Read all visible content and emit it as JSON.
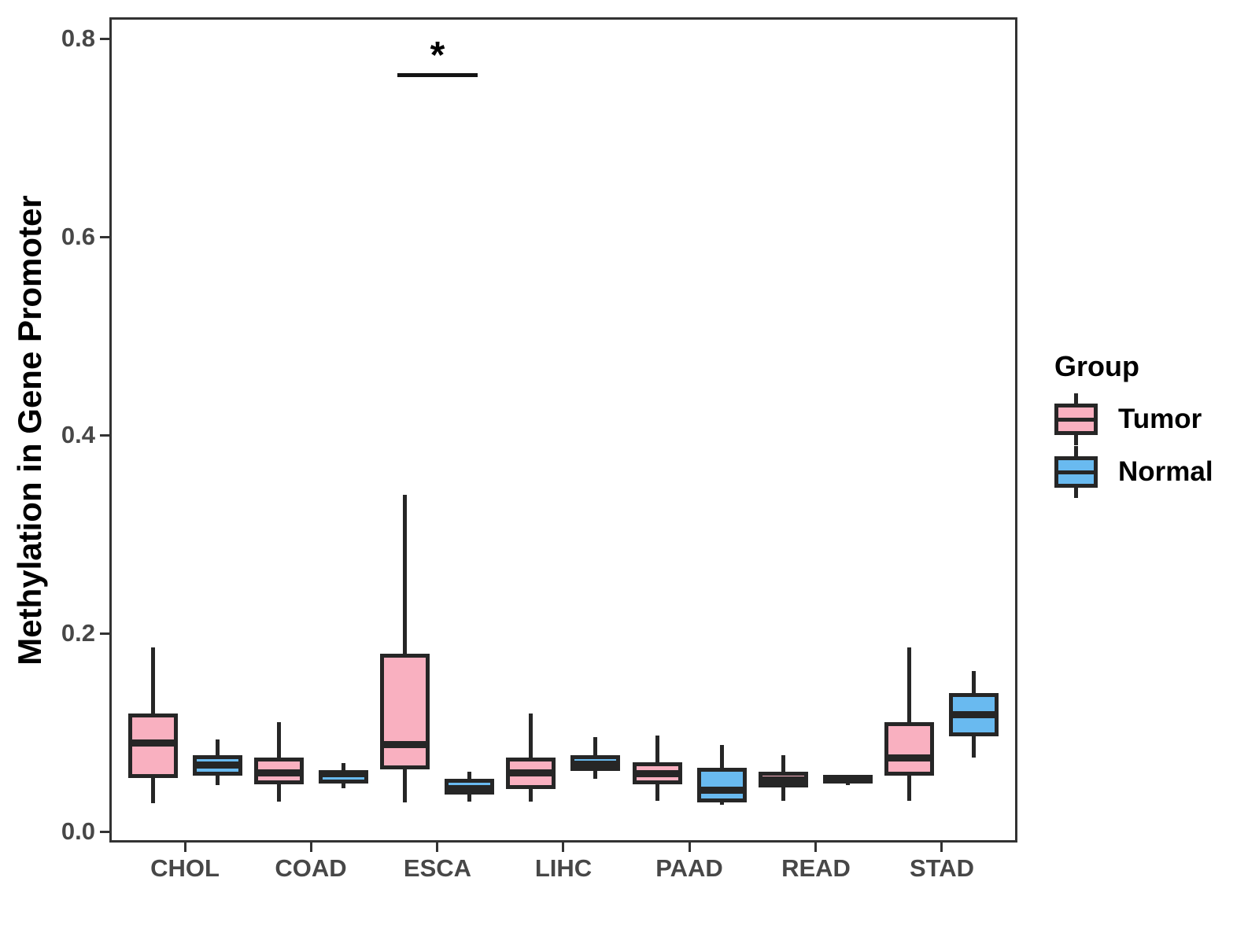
{
  "chart_data": {
    "type": "boxplot",
    "title": "",
    "xlabel": "",
    "ylabel": "Methylation in Gene Promoter",
    "ylim": [
      0.0,
      0.8
    ],
    "yticks": [
      0.0,
      0.2,
      0.4,
      0.6,
      0.8
    ],
    "ytick_labels": [
      "0.0",
      "0.2",
      "0.4",
      "0.6",
      "0.8"
    ],
    "categories": [
      "CHOL",
      "COAD",
      "ESCA",
      "LIHC",
      "PAAD",
      "READ",
      "STAD"
    ],
    "grid": false,
    "legend": {
      "title": "Group",
      "position": "right",
      "entries": [
        {
          "label": "Tumor",
          "color": "#F9B0C0"
        },
        {
          "label": "Normal",
          "color": "#69BAF0"
        }
      ]
    },
    "series": [
      {
        "name": "Tumor",
        "color": "#F9B0C0",
        "boxes": [
          {
            "category": "CHOL",
            "min": 0.029,
            "q1": 0.054,
            "median": 0.089,
            "q3": 0.119,
            "max": 0.186
          },
          {
            "category": "COAD",
            "min": 0.03,
            "q1": 0.048,
            "median": 0.059,
            "q3": 0.075,
            "max": 0.11
          },
          {
            "category": "ESCA",
            "min": 0.03,
            "q1": 0.062,
            "median": 0.088,
            "q3": 0.179,
            "max": 0.34
          },
          {
            "category": "LIHC",
            "min": 0.03,
            "q1": 0.043,
            "median": 0.059,
            "q3": 0.075,
            "max": 0.119
          },
          {
            "category": "PAAD",
            "min": 0.031,
            "q1": 0.048,
            "median": 0.058,
            "q3": 0.07,
            "max": 0.097
          },
          {
            "category": "READ",
            "min": 0.031,
            "q1": 0.044,
            "median": 0.052,
            "q3": 0.06,
            "max": 0.077
          },
          {
            "category": "STAD",
            "min": 0.031,
            "q1": 0.056,
            "median": 0.074,
            "q3": 0.11,
            "max": 0.186
          }
        ]
      },
      {
        "name": "Normal",
        "color": "#69BAF0",
        "boxes": [
          {
            "category": "CHOL",
            "min": 0.047,
            "q1": 0.056,
            "median": 0.067,
            "q3": 0.077,
            "max": 0.093
          },
          {
            "category": "COAD",
            "min": 0.044,
            "q1": 0.048,
            "median": 0.058,
            "q3": 0.061,
            "max": 0.069
          },
          {
            "category": "ESCA",
            "min": 0.03,
            "q1": 0.037,
            "median": 0.043,
            "q3": 0.053,
            "max": 0.06
          },
          {
            "category": "LIHC",
            "min": 0.053,
            "q1": 0.061,
            "median": 0.068,
            "q3": 0.077,
            "max": 0.095
          },
          {
            "category": "PAAD",
            "min": 0.027,
            "q1": 0.029,
            "median": 0.042,
            "q3": 0.064,
            "max": 0.087
          },
          {
            "category": "READ",
            "min": 0.047,
            "q1": 0.048,
            "median": 0.052,
            "q3": 0.057,
            "max": 0.057
          },
          {
            "category": "STAD",
            "min": 0.075,
            "q1": 0.096,
            "median": 0.118,
            "q3": 0.14,
            "max": 0.162
          }
        ]
      }
    ],
    "annotations": [
      {
        "type": "significance",
        "label": "*",
        "category": "ESCA",
        "between": [
          "Tumor",
          "Normal"
        ],
        "bar_y": 0.765
      }
    ],
    "colors": {
      "box_border": "#262626",
      "axis": "#333333",
      "tick_text": "#474747",
      "title_text": "#000000"
    }
  }
}
